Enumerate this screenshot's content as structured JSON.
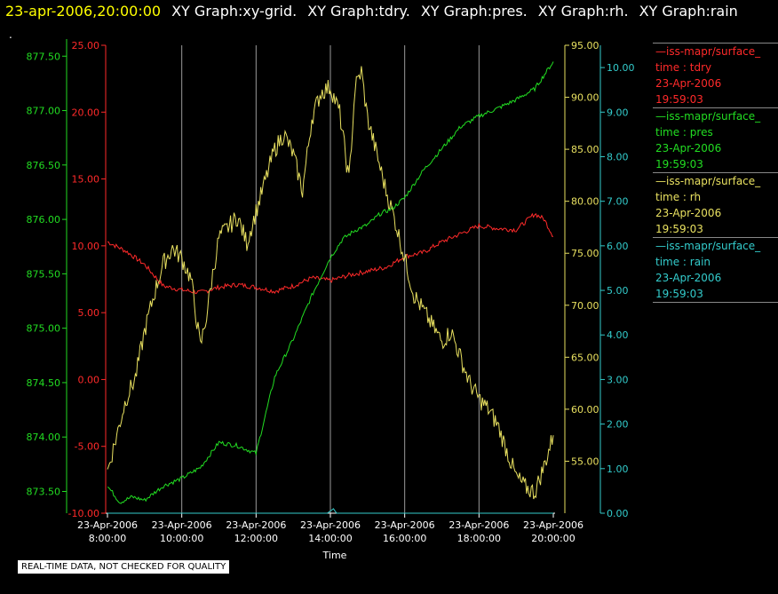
{
  "header": {
    "timestamp": "23-apr-2006,20:00:00",
    "graphs": [
      "XY Graph:xy-grid.",
      "XY Graph:tdry.",
      "XY Graph:pres.",
      "XY Graph:rh.",
      "XY Graph:rain"
    ],
    "timestamp_color": "#ffff00",
    "graphs_color": "#ffffff"
  },
  "dot_label": ".",
  "footer_note": "REAL-TIME DATA, NOT CHECKED FOR QUALITY",
  "legend": [
    {
      "name": "—iss-mapr/surface_",
      "var": "time : tdry",
      "date": "23-Apr-2006",
      "time": "19:59:03",
      "color": "#ff2a2a"
    },
    {
      "name": "—iss-mapr/surface_",
      "var": "time : pres",
      "date": "23-Apr-2006",
      "time": "19:59:03",
      "color": "#22dd22"
    },
    {
      "name": "—iss-mapr/surface_",
      "var": "time : rh",
      "date": "23-Apr-2006",
      "time": "19:59:03",
      "color": "#e8e060"
    },
    {
      "name": "—iss-mapr/surface_",
      "var": "time : rain",
      "date": "23-Apr-2006",
      "time": "19:59:03",
      "color": "#33cccc"
    }
  ],
  "chart_data": {
    "type": "line",
    "xlabel": "Time",
    "x_ticks": [
      {
        "date": "23-Apr-2006",
        "time": "8:00:00"
      },
      {
        "date": "23-Apr-2006",
        "time": "10:00:00"
      },
      {
        "date": "23-Apr-2006",
        "time": "12:00:00"
      },
      {
        "date": "23-Apr-2006",
        "time": "14:00:00"
      },
      {
        "date": "23-Apr-2006",
        "time": "16:00:00"
      },
      {
        "date": "23-Apr-2006",
        "time": "18:00:00"
      },
      {
        "date": "23-Apr-2006",
        "time": "20:00:00"
      }
    ],
    "xlim": [
      "08:00",
      "20:00"
    ],
    "grid": "vertical",
    "axes": {
      "tdry": {
        "ticks": [
          "-10.00",
          "-5.00",
          "0.00",
          "5.00",
          "10.00",
          "15.00",
          "20.00",
          "25.00"
        ],
        "min": -10,
        "max": 25,
        "color": "#ff2a2a"
      },
      "pres": {
        "ticks": [
          "873.50",
          "874.00",
          "874.50",
          "875.00",
          "875.50",
          "876.00",
          "876.50",
          "877.00",
          "877.50"
        ],
        "min": 873.3,
        "max": 877.6,
        "color": "#22dd22"
      },
      "rh": {
        "ticks": [
          "55.00",
          "60.00",
          "65.00",
          "70.00",
          "75.00",
          "80.00",
          "85.00",
          "90.00",
          "95.00"
        ],
        "min": 50,
        "max": 95,
        "color": "#e8e060"
      },
      "rain": {
        "ticks": [
          "0.00",
          "1.00",
          "2.00",
          "3.00",
          "4.00",
          "5.00",
          "6.00",
          "7.00",
          "8.00",
          "9.00",
          "10.00"
        ],
        "min": 0,
        "max": 10.5,
        "color": "#33cccc"
      }
    },
    "series": [
      {
        "name": "time : tdry",
        "axis": "tdry",
        "x": [
          "08:00",
          "08:30",
          "09:00",
          "09:30",
          "10:00",
          "10:30",
          "11:00",
          "11:30",
          "12:00",
          "12:30",
          "13:00",
          "13:30",
          "14:00",
          "14:30",
          "15:00",
          "15:30",
          "16:00",
          "16:30",
          "17:00",
          "17:30",
          "18:00",
          "18:30",
          "19:00",
          "19:30",
          "19:45",
          "20:00"
        ],
        "values": [
          10.3,
          9.6,
          8.6,
          7.0,
          6.7,
          6.5,
          6.9,
          7.1,
          6.9,
          6.6,
          7.0,
          7.6,
          7.4,
          7.8,
          8.1,
          8.4,
          9.2,
          9.5,
          10.3,
          10.9,
          11.5,
          11.3,
          11.2,
          12.4,
          12.0,
          10.7
        ]
      },
      {
        "name": "time : pres",
        "axis": "pres",
        "x": [
          "08:00",
          "08:20",
          "08:40",
          "09:00",
          "09:30",
          "10:00",
          "10:30",
          "11:00",
          "11:30",
          "12:00",
          "12:30",
          "13:00",
          "13:30",
          "14:00",
          "14:20",
          "14:40",
          "15:00",
          "15:20",
          "15:40",
          "16:00",
          "16:30",
          "17:00",
          "17:30",
          "18:00",
          "18:30",
          "19:00",
          "19:30",
          "20:00"
        ],
        "values": [
          873.55,
          873.4,
          873.45,
          873.42,
          873.55,
          873.62,
          873.72,
          873.95,
          873.92,
          873.85,
          874.55,
          874.9,
          875.3,
          875.65,
          875.82,
          875.9,
          875.95,
          876.05,
          876.1,
          876.2,
          876.45,
          876.65,
          876.85,
          876.95,
          877.02,
          877.1,
          877.2,
          877.45
        ]
      },
      {
        "name": "time : rh",
        "axis": "rh",
        "x": [
          "08:00",
          "08:15",
          "08:30",
          "08:45",
          "09:00",
          "09:15",
          "09:30",
          "09:45",
          "10:00",
          "10:15",
          "10:30",
          "10:40",
          "10:50",
          "11:00",
          "11:15",
          "11:30",
          "11:45",
          "12:00",
          "12:15",
          "12:30",
          "12:45",
          "13:00",
          "13:15",
          "13:30",
          "13:45",
          "14:00",
          "14:15",
          "14:30",
          "14:40",
          "14:50",
          "15:00",
          "15:15",
          "15:30",
          "15:45",
          "16:00",
          "16:15",
          "16:30",
          "16:45",
          "17:00",
          "17:15",
          "17:30",
          "17:45",
          "18:00",
          "18:15",
          "18:30",
          "18:45",
          "19:00",
          "19:15",
          "19:30",
          "19:45",
          "20:00"
        ],
        "values": [
          54.0,
          57.5,
          61.0,
          63.0,
          67.5,
          71.0,
          74.0,
          75.5,
          74.5,
          72.5,
          66.0,
          69.0,
          73.0,
          76.5,
          77.5,
          78.5,
          76.0,
          79.0,
          82.0,
          85.0,
          86.5,
          84.5,
          81.0,
          88.0,
          90.5,
          91.0,
          88.5,
          82.0,
          91.0,
          92.5,
          88.0,
          84.5,
          81.0,
          78.0,
          74.5,
          71.0,
          69.5,
          68.0,
          66.5,
          67.5,
          65.0,
          62.5,
          61.0,
          60.0,
          58.5,
          56.0,
          53.5,
          52.5,
          52.0,
          54.5,
          57.5
        ]
      },
      {
        "name": "time : rain",
        "axis": "rain",
        "x": [
          "08:00",
          "13:55",
          "14:00",
          "14:05",
          "14:10",
          "20:00"
        ],
        "values": [
          0,
          0,
          0.05,
          0.1,
          0,
          0
        ]
      }
    ]
  }
}
